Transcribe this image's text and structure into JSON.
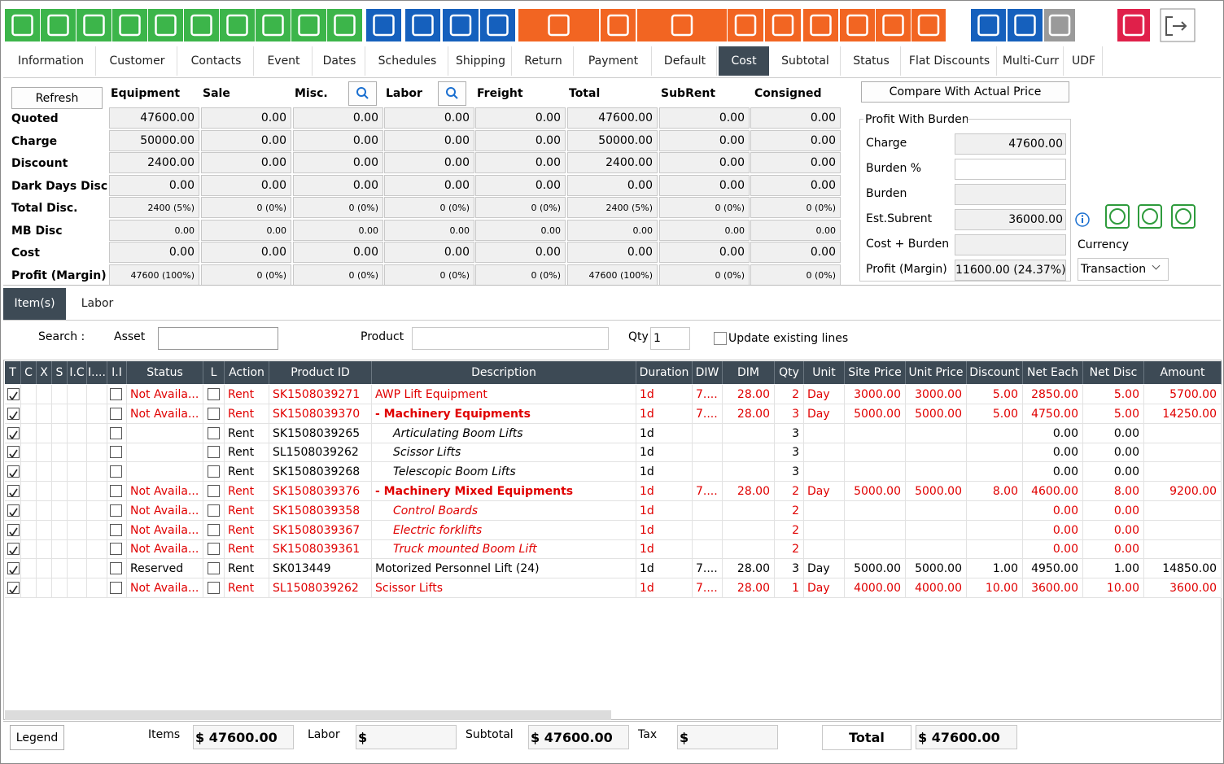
{
  "tabs": {
    "items": [
      "Information",
      "Customer",
      "Contacts",
      "Event",
      "Dates",
      "Schedules",
      "Shipping",
      "Return",
      "Payment",
      "Default",
      "Cost",
      "Subtotal",
      "Status",
      "Flat Discounts",
      "Multi-Curr",
      "UDF"
    ],
    "active": 10
  },
  "cost": {
    "refresh": "Refresh",
    "columns": [
      "Equipment",
      "Sale",
      "Misc.",
      "Labor",
      "Freight",
      "Total",
      "SubRent",
      "Consigned"
    ],
    "rows": [
      {
        "label": "Quoted",
        "values": [
          "47600.00",
          "0.00",
          "0.00",
          "0.00",
          "0.00",
          "47600.00",
          "0.00",
          "0.00"
        ]
      },
      {
        "label": "Charge",
        "values": [
          "50000.00",
          "0.00",
          "0.00",
          "0.00",
          "0.00",
          "50000.00",
          "0.00",
          "0.00"
        ]
      },
      {
        "label": "Discount",
        "values": [
          "2400.00",
          "0.00",
          "0.00",
          "0.00",
          "0.00",
          "2400.00",
          "0.00",
          "0.00"
        ]
      },
      {
        "label": "Dark Days Disc.",
        "values": [
          "0.00",
          "0.00",
          "0.00",
          "0.00",
          "0.00",
          "0.00",
          "0.00",
          "0.00"
        ]
      },
      {
        "label": "Total Disc.",
        "small": true,
        "values": [
          "2400 (5%)",
          "0 (0%)",
          "0 (0%)",
          "0 (0%)",
          "0 (0%)",
          "2400 (5%)",
          "0 (0%)",
          "0 (0%)"
        ]
      },
      {
        "label": "MB Disc",
        "small": true,
        "values": [
          "0.00",
          "0.00",
          "0.00",
          "0.00",
          "0.00",
          "0.00",
          "0.00",
          "0.00"
        ]
      },
      {
        "label": "Cost",
        "values": [
          "0.00",
          "0.00",
          "0.00",
          "0.00",
          "0.00",
          "0.00",
          "0.00",
          "0.00"
        ]
      },
      {
        "label": "Profit (Margin)",
        "small": true,
        "values": [
          "47600 (100%)",
          "0 (0%)",
          "0 (0%)",
          "0 (0%)",
          "0 (0%)",
          "47600 (100%)",
          "0 (0%)",
          "0 (0%)"
        ]
      }
    ]
  },
  "compare": "Compare With Actual Price",
  "profit_burden": {
    "title": "Profit With Burden",
    "fields": [
      {
        "label": "Charge",
        "value": "47600.00"
      },
      {
        "label": "Burden %",
        "value": null
      },
      {
        "label": "Burden",
        "value": null
      },
      {
        "label": "Est.Subrent",
        "value": "36000.00"
      },
      {
        "label": "Cost + Burden",
        "value": null
      },
      {
        "label": "Profit (Margin)",
        "value": "11600.00 (24.37%)"
      }
    ]
  },
  "currency": {
    "label": "Currency",
    "value": "Transaction"
  },
  "subtabs": {
    "items": [
      "Item(s)",
      "Labor"
    ],
    "active": 0
  },
  "search": {
    "label": "Search :",
    "asset": "Asset",
    "product": "Product",
    "qty": "Qty",
    "qty_value": "1",
    "update": "Update existing lines"
  },
  "items": {
    "headers": [
      "T",
      "C",
      "X",
      "S",
      "I.C",
      "I....",
      "I.I",
      "Status",
      "L",
      "Action",
      "Product ID",
      "Description",
      "Duration",
      "DIW",
      "DIM",
      "Qty",
      "Unit",
      "Site Price",
      "Unit Price",
      "Discount",
      "Net Each",
      "Net Disc",
      "Amount"
    ],
    "rows": [
      {
        "color": "#e00000",
        "font": "normal",
        "cells": [
          "Not Availa...",
          "Rent",
          "SK1508039271",
          "AWP Lift Equipment",
          "1d",
          "7....",
          "28.00",
          "2",
          "Day",
          "3000.00",
          "3000.00",
          "5.00",
          "2850.00",
          "5.00",
          "5700.00"
        ]
      },
      {
        "color": "#e00000",
        "font": "bold",
        "cells": [
          "Not Availa...",
          "Rent",
          "SK1508039370",
          "- Machinery Equipments",
          "1d",
          "7....",
          "28.00",
          "3",
          "Day",
          "5000.00",
          "5000.00",
          "5.00",
          "4750.00",
          "5.00",
          "14250.00"
        ]
      },
      {
        "color": "#000000",
        "font": "italic",
        "cells": [
          null,
          "Rent",
          "SK1508039265",
          "Articulating Boom Lifts",
          "1d",
          null,
          null,
          "3",
          null,
          null,
          null,
          null,
          "0.00",
          "0.00",
          null
        ]
      },
      {
        "color": "#000000",
        "font": "italic",
        "cells": [
          null,
          "Rent",
          "SL1508039262",
          "Scissor Lifts",
          "1d",
          null,
          null,
          "3",
          null,
          null,
          null,
          null,
          "0.00",
          "0.00",
          null
        ]
      },
      {
        "color": "#000000",
        "font": "italic",
        "cells": [
          null,
          "Rent",
          "SK1508039268",
          "Telescopic Boom Lifts",
          "1d",
          null,
          null,
          "3",
          null,
          null,
          null,
          null,
          "0.00",
          "0.00",
          null
        ]
      },
      {
        "color": "#e00000",
        "font": "bold",
        "cells": [
          "Not Availa...",
          "Rent",
          "SK1508039376",
          "- Machinery Mixed Equipments",
          "1d",
          "7....",
          "28.00",
          "2",
          "Day",
          "5000.00",
          "5000.00",
          "8.00",
          "4600.00",
          "8.00",
          "9200.00"
        ]
      },
      {
        "color": "#e00000",
        "font": "italic",
        "cells": [
          "Not Availa...",
          "Rent",
          "SK1508039358",
          "Control Boards",
          "1d",
          null,
          null,
          "2",
          null,
          null,
          null,
          null,
          "0.00",
          "0.00",
          null
        ]
      },
      {
        "color": "#e00000",
        "font": "italic",
        "cells": [
          "Not Availa...",
          "Rent",
          "SK1508039367",
          "Electric forklifts",
          "1d",
          null,
          null,
          "2",
          null,
          null,
          null,
          null,
          "0.00",
          "0.00",
          null
        ]
      },
      {
        "color": "#e00000",
        "font": "italic",
        "cells": [
          "Not Availa...",
          "Rent",
          "SK1508039361",
          "Truck mounted Boom Lift",
          "1d",
          null,
          null,
          "2",
          null,
          null,
          null,
          null,
          "0.00",
          "0.00",
          null
        ]
      },
      {
        "color": "#000000",
        "font": "normal",
        "cells": [
          "Reserved",
          "Rent",
          "SK013449",
          "Motorized Personnel Lift (24)",
          "1d",
          "7....",
          "28.00",
          "3",
          "Day",
          "5000.00",
          "5000.00",
          "1.00",
          "4950.00",
          "1.00",
          "14850.00"
        ]
      },
      {
        "color": "#e00000",
        "font": "normal",
        "cells": [
          "Not Availa...",
          "Rent",
          "SL1508039262",
          "Scissor Lifts",
          "1d",
          "7....",
          "28.00",
          "1",
          "Day",
          "4000.00",
          "4000.00",
          "10.00",
          "3600.00",
          "10.00",
          "3600.00"
        ]
      }
    ]
  },
  "footer": {
    "legend": "Legend",
    "items_label": "Items",
    "items_value": "$ 47600.00",
    "labor_label": "Labor",
    "labor_value": "$",
    "subtotal_label": "Subtotal",
    "subtotal_value": "$ 47600.00",
    "tax_label": "Tax",
    "tax_value": "$",
    "total_label": "Total",
    "total_value": "$ 47600.00"
  }
}
